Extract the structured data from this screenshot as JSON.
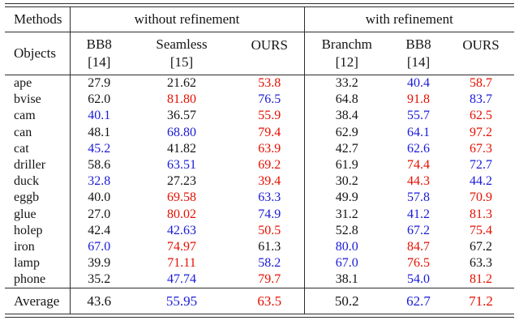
{
  "colors": {
    "black": "#141414",
    "red": "#e50f00",
    "blue": "#1a1ad9",
    "rule": "#2b2b2b"
  },
  "table": {
    "methods_label": "Methods",
    "objects_label": "Objects",
    "groups": [
      {
        "label": "without refinement"
      },
      {
        "label": "with refinement"
      }
    ],
    "columns": [
      {
        "method": "BB8",
        "ref": "[14]"
      },
      {
        "method": "Seamless",
        "ref": "[15]"
      },
      {
        "method": "OURS",
        "ref": ""
      },
      {
        "method": "Branchm",
        "ref": "[12]"
      },
      {
        "method": "BB8",
        "ref": "[14]"
      },
      {
        "method": "OURS",
        "ref": ""
      }
    ],
    "rows": [
      {
        "object": "ape",
        "cells": [
          {
            "v": "27.9",
            "c": "black"
          },
          {
            "v": "21.62",
            "c": "black"
          },
          {
            "v": "53.8",
            "c": "red"
          },
          {
            "v": "33.2",
            "c": "black"
          },
          {
            "v": "40.4",
            "c": "blue"
          },
          {
            "v": "58.7",
            "c": "red"
          }
        ]
      },
      {
        "object": "bvise",
        "cells": [
          {
            "v": "62.0",
            "c": "black"
          },
          {
            "v": "81.80",
            "c": "red"
          },
          {
            "v": "76.5",
            "c": "blue"
          },
          {
            "v": "64.8",
            "c": "black"
          },
          {
            "v": "91.8",
            "c": "red"
          },
          {
            "v": "83.7",
            "c": "blue"
          }
        ]
      },
      {
        "object": "cam",
        "cells": [
          {
            "v": "40.1",
            "c": "blue"
          },
          {
            "v": "36.57",
            "c": "black"
          },
          {
            "v": "55.9",
            "c": "red"
          },
          {
            "v": "38.4",
            "c": "black"
          },
          {
            "v": "55.7",
            "c": "blue"
          },
          {
            "v": "62.5",
            "c": "red"
          }
        ]
      },
      {
        "object": "can",
        "cells": [
          {
            "v": "48.1",
            "c": "black"
          },
          {
            "v": "68.80",
            "c": "blue"
          },
          {
            "v": "79.4",
            "c": "red"
          },
          {
            "v": "62.9",
            "c": "black"
          },
          {
            "v": "64.1",
            "c": "blue"
          },
          {
            "v": "97.2",
            "c": "red"
          }
        ]
      },
      {
        "object": "cat",
        "cells": [
          {
            "v": "45.2",
            "c": "blue"
          },
          {
            "v": "41.82",
            "c": "black"
          },
          {
            "v": "63.9",
            "c": "red"
          },
          {
            "v": "42.7",
            "c": "black"
          },
          {
            "v": "62.6",
            "c": "blue"
          },
          {
            "v": "67.3",
            "c": "red"
          }
        ]
      },
      {
        "object": "driller",
        "cells": [
          {
            "v": "58.6",
            "c": "black"
          },
          {
            "v": "63.51",
            "c": "blue"
          },
          {
            "v": "69.2",
            "c": "red"
          },
          {
            "v": "61.9",
            "c": "black"
          },
          {
            "v": "74.4",
            "c": "red"
          },
          {
            "v": "72.7",
            "c": "blue"
          }
        ]
      },
      {
        "object": "duck",
        "cells": [
          {
            "v": "32.8",
            "c": "blue"
          },
          {
            "v": "27.23",
            "c": "black"
          },
          {
            "v": "39.4",
            "c": "red"
          },
          {
            "v": "30.2",
            "c": "black"
          },
          {
            "v": "44.3",
            "c": "red"
          },
          {
            "v": "44.2",
            "c": "blue"
          }
        ]
      },
      {
        "object": "eggb",
        "cells": [
          {
            "v": "40.0",
            "c": "black"
          },
          {
            "v": "69.58",
            "c": "red"
          },
          {
            "v": "63.3",
            "c": "blue"
          },
          {
            "v": "49.9",
            "c": "black"
          },
          {
            "v": "57.8",
            "c": "blue"
          },
          {
            "v": "70.9",
            "c": "red"
          }
        ]
      },
      {
        "object": "glue",
        "cells": [
          {
            "v": "27.0",
            "c": "black"
          },
          {
            "v": "80.02",
            "c": "red"
          },
          {
            "v": "74.9",
            "c": "blue"
          },
          {
            "v": "31.2",
            "c": "black"
          },
          {
            "v": "41.2",
            "c": "blue"
          },
          {
            "v": "81.3",
            "c": "red"
          }
        ]
      },
      {
        "object": "holep",
        "cells": [
          {
            "v": "42.4",
            "c": "black"
          },
          {
            "v": "42.63",
            "c": "blue"
          },
          {
            "v": "50.5",
            "c": "red"
          },
          {
            "v": "52.8",
            "c": "black"
          },
          {
            "v": "67.2",
            "c": "blue"
          },
          {
            "v": "75.4",
            "c": "red"
          }
        ]
      },
      {
        "object": "iron",
        "cells": [
          {
            "v": "67.0",
            "c": "blue"
          },
          {
            "v": "74.97",
            "c": "red"
          },
          {
            "v": "61.3",
            "c": "black"
          },
          {
            "v": "80.0",
            "c": "blue"
          },
          {
            "v": "84.7",
            "c": "red"
          },
          {
            "v": "67.2",
            "c": "black"
          }
        ]
      },
      {
        "object": "lamp",
        "cells": [
          {
            "v": "39.9",
            "c": "black"
          },
          {
            "v": "71.11",
            "c": "red"
          },
          {
            "v": "58.2",
            "c": "blue"
          },
          {
            "v": "67.0",
            "c": "blue"
          },
          {
            "v": "76.5",
            "c": "red"
          },
          {
            "v": "63.3",
            "c": "black"
          }
        ]
      },
      {
        "object": "phone",
        "cells": [
          {
            "v": "35.2",
            "c": "black"
          },
          {
            "v": "47.74",
            "c": "blue"
          },
          {
            "v": "79.7",
            "c": "red"
          },
          {
            "v": "38.1",
            "c": "black"
          },
          {
            "v": "54.0",
            "c": "blue"
          },
          {
            "v": "81.2",
            "c": "red"
          }
        ]
      }
    ],
    "average": {
      "object": "Average",
      "cells": [
        {
          "v": "43.6",
          "c": "black"
        },
        {
          "v": "55.95",
          "c": "blue"
        },
        {
          "v": "63.5",
          "c": "red"
        },
        {
          "v": "50.2",
          "c": "black"
        },
        {
          "v": "62.7",
          "c": "blue"
        },
        {
          "v": "71.2",
          "c": "red"
        }
      ]
    }
  }
}
